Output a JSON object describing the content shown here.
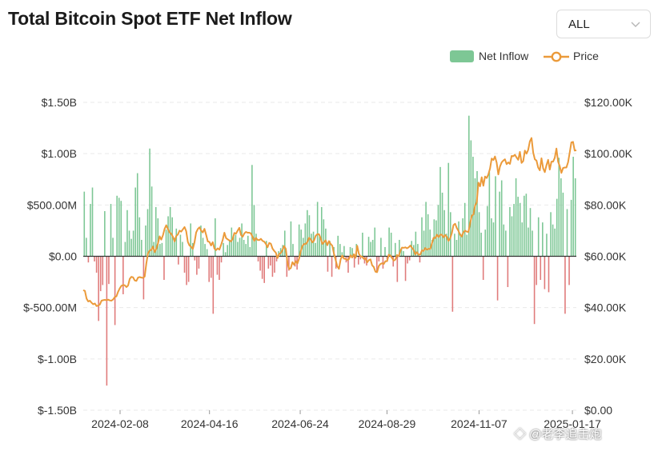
{
  "header": {
    "title": "Total Bitcoin Spot ETF Net Inflow",
    "range_selector": {
      "selected": "ALL"
    }
  },
  "legend": {
    "net_inflow": "Net Inflow",
    "price": "Price"
  },
  "colors": {
    "inflow_positive": "#7dc795",
    "inflow_negative": "#e07b7b",
    "price_line": "#eb9a3a",
    "zero_line": "#333333",
    "grid": "#e9e9e9",
    "axis_text": "#333333"
  },
  "watermark_text": "◇ @老李追击炮",
  "chart_data": {
    "type": "bar",
    "title": "Total Bitcoin Spot ETF Net Inflow",
    "series": [
      {
        "name": "Net Inflow",
        "type": "bar",
        "unit": "USD billions",
        "axis": "left",
        "values": [
          0.63,
          0.18,
          -0.06,
          0.51,
          0.67,
          -0.05,
          -0.16,
          -0.63,
          -0.34,
          -0.28,
          0.44,
          -1.26,
          -0.27,
          0.51,
          0.18,
          -0.67,
          0.59,
          0.57,
          0.54,
          -0.37,
          0.14,
          0.45,
          0.25,
          0.17,
          0.25,
          0.67,
          0.81,
          0.38,
          0.16,
          -0.42,
          0.3,
          0.46,
          1.05,
          0.68,
          0.14,
          0.48,
          0.37,
          0.12,
          0.13,
          -0.23,
          0.26,
          0.39,
          0.48,
          0.38,
          0.18,
          0.27,
          -0.08,
          0.21,
          0.14,
          -0.16,
          -0.28,
          -0.25,
          0.32,
          0.13,
          -0.04,
          -0.18,
          -0.12,
          0.3,
          0.18,
          0.12,
          0.07,
          -0.25,
          -0.21,
          -0.56,
          0.37,
          -0.18,
          -0.23,
          -0.06,
          0.13,
          0.04,
          0.11,
          0.16,
          0.28,
          0.19,
          0.21,
          0.14,
          0.18,
          0.32,
          0.16,
          0.12,
          0.2,
          0.09,
          0.89,
          0.5,
          0.22,
          -0.05,
          -0.14,
          -0.22,
          -0.26,
          0.15,
          -0.12,
          -0.09,
          -0.2,
          -0.16,
          -0.05,
          0.05,
          0.08,
          0.11,
          0.25,
          -0.2,
          -0.14,
          0.34,
          0.12,
          -0.1,
          -0.13,
          0.31,
          0.26,
          0.18,
          0.32,
          0.45,
          0.4,
          0.22,
          0.24,
          0.13,
          0.53,
          0.19,
          0.48,
          0.36,
          0.27,
          -0.15,
          0.15,
          -0.2,
          0.09,
          -0.12,
          0.2,
          0.12,
          0.04,
          0.1,
          -0.06,
          -0.16,
          0.09,
          0.08,
          -0.11,
          0.12,
          -0.08,
          -0.03,
          0.23,
          -0.07,
          -0.09,
          0.19,
          0.14,
          0.16,
          0.28,
          -0.15,
          -0.05,
          0.18,
          -0.12,
          0.09,
          -0.03,
          0.28,
          0.23,
          -0.1,
          0.13,
          -0.25,
          0.16,
          0.07,
          0.05,
          -0.24,
          -0.07,
          -0.04,
          0.15,
          0.11,
          0.24,
          0.12,
          -0.06,
          0.38,
          0.25,
          0.53,
          0.41,
          0.26,
          0.16,
          0.36,
          0.35,
          0.5,
          0.87,
          0.62,
          0.45,
          0.22,
          0.91,
          0.43,
          -0.54,
          0.22,
          0.16,
          0.34,
          0.22,
          0.37,
          0.52,
          0.21,
          1.37,
          1.13,
          0.97,
          0.76,
          0.83,
          0.43,
          0.23,
          -0.23,
          0.26,
          0.49,
          0.82,
          0.37,
          0.33,
          0.78,
          -0.43,
          0.63,
          0.74,
          0.31,
          0.25,
          -0.3,
          0.48,
          0.39,
          0.51,
          0.76,
          0.58,
          0.52,
          0.33,
          0.59,
          0.61,
          0.28,
          0.47,
          0.25,
          -0.66,
          -0.28,
          0.38,
          -0.23,
          0.33,
          -0.32,
          0.22,
          -0.35,
          0.43,
          0.31,
          0.27,
          0.56,
          0.96,
          0.76,
          0.62,
          -0.56,
          0.46,
          -0.28,
          0.55,
          0.97,
          0.76
        ]
      },
      {
        "name": "Price",
        "type": "line",
        "unit": "USD",
        "axis": "right",
        "values": [
          46800,
          46500,
          43500,
          42400,
          42700,
          41900,
          41300,
          41600,
          40600,
          40800,
          41200,
          42700,
          42900,
          43000,
          42900,
          43100,
          42800,
          42700,
          43200,
          44100,
          44400,
          46200,
          47500,
          48500,
          48800,
          48700,
          48000,
          48600,
          51200,
          52000,
          51800,
          50600,
          50400,
          51700,
          51900,
          51700,
          51600,
          52100,
          57200,
          61200,
          62200,
          62500,
          63800,
          61600,
          62900,
          65000,
          67800,
          66500,
          68200,
          70700,
          72100,
          70600,
          69300,
          68800,
          67600,
          65800,
          67900,
          68500,
          70000,
          69600,
          70500,
          71400,
          69800,
          65600,
          64200,
          63700,
          62900,
          65400,
          69300,
          70600,
          71300,
          70000,
          69300,
          70700,
          68400,
          65800,
          65600,
          64200,
          65500,
          63000,
          62400,
          63100,
          62600,
          64400,
          66400,
          69200,
          67100,
          66600,
          66200,
          65800,
          66800,
          69100,
          68800,
          70000,
          71100,
          68300,
          67600,
          68900,
          69500,
          69200,
          69200,
          68900,
          67500,
          66000,
          67200,
          66400,
          66300,
          66800,
          66000,
          65700,
          64800,
          63500,
          65200,
          64900,
          63000,
          62100,
          61400,
          59300,
          60900,
          61300,
          62400,
          64000,
          62900,
          57600,
          55000,
          55400,
          57700,
          56700,
          58100,
          57200,
          59100,
          62000,
          64000,
          64800,
          64800,
          65600,
          67200,
          66600,
          65400,
          66100,
          68000,
          68600,
          68600,
          67000,
          64800,
          65500,
          66200,
          64300,
          65900,
          64800,
          64100,
          61000,
          58600,
          56100,
          55100,
          58700,
          60300,
          59100,
          59000,
          58500,
          58900,
          60400,
          59500,
          60800,
          59400,
          64100,
          61000,
          60000,
          59800,
          59000,
          59200,
          57600,
          58500,
          58800,
          56500,
          55800,
          54000,
          53800,
          56200,
          57000,
          57300,
          57000,
          58100,
          58100,
          60600,
          60300,
          59300,
          58300,
          58700,
          60500,
          60000,
          62100,
          63400,
          63300,
          63500,
          63100,
          63500,
          64200,
          63300,
          62500,
          60800,
          61600,
          60600,
          60700,
          62300,
          62100,
          63200,
          62600,
          62900,
          62900,
          65000,
          67200,
          67100,
          68400,
          67500,
          68400,
          68400,
          67400,
          68300,
          67600,
          66000,
          67000,
          69000,
          72200,
          72700,
          71000,
          69900,
          68400,
          67700,
          69400,
          70000,
          69600,
          69500,
          72800,
          75800,
          76300,
          79800,
          81000,
          88700,
          87300,
          90800,
          87500,
          91100,
          90500,
          91900,
          94200,
          98100,
          97500,
          98900,
          96500,
          91900,
          95000,
          96600,
          97300,
          97800,
          95900,
          96600,
          96000,
          99100,
          99000,
          99600,
          98500,
          97600,
          100700,
          96400,
          97100,
          101200,
          100000,
          101500,
          104800,
          106100,
          100500,
          97800,
          97300,
          94600,
          93500,
          98200,
          94300,
          92800,
          95500,
          97600,
          93800,
          96900,
          96900,
          98400,
          102000,
          96900,
          95100,
          92500,
          94400,
          94600,
          94600,
          96600,
          100400,
          104400,
          104600,
          101200,
          101300
        ]
      }
    ],
    "x_tick_labels": [
      "2024-02-08",
      "2024-04-16",
      "2024-06-24",
      "2024-08-29",
      "2024-11-07",
      "2025-01-17"
    ],
    "xlim": [
      "2024-01-11",
      "2025-01-20"
    ],
    "left_axis": {
      "ylim": [
        -1.5,
        1.5
      ],
      "tick_labels": [
        "$1.50B",
        "$1.00B",
        "$500.00M",
        "$0.00",
        "$-500.00M",
        "$-1.00B",
        "$-1.50B"
      ]
    },
    "right_axis": {
      "ylim": [
        0,
        120000
      ],
      "tick_labels": [
        "$120.00K",
        "$100.00K",
        "$80.00K",
        "$60.00K",
        "$40.00K",
        "$20.00K",
        "$0.00"
      ]
    },
    "grid": true,
    "legend_position": "top-right"
  }
}
